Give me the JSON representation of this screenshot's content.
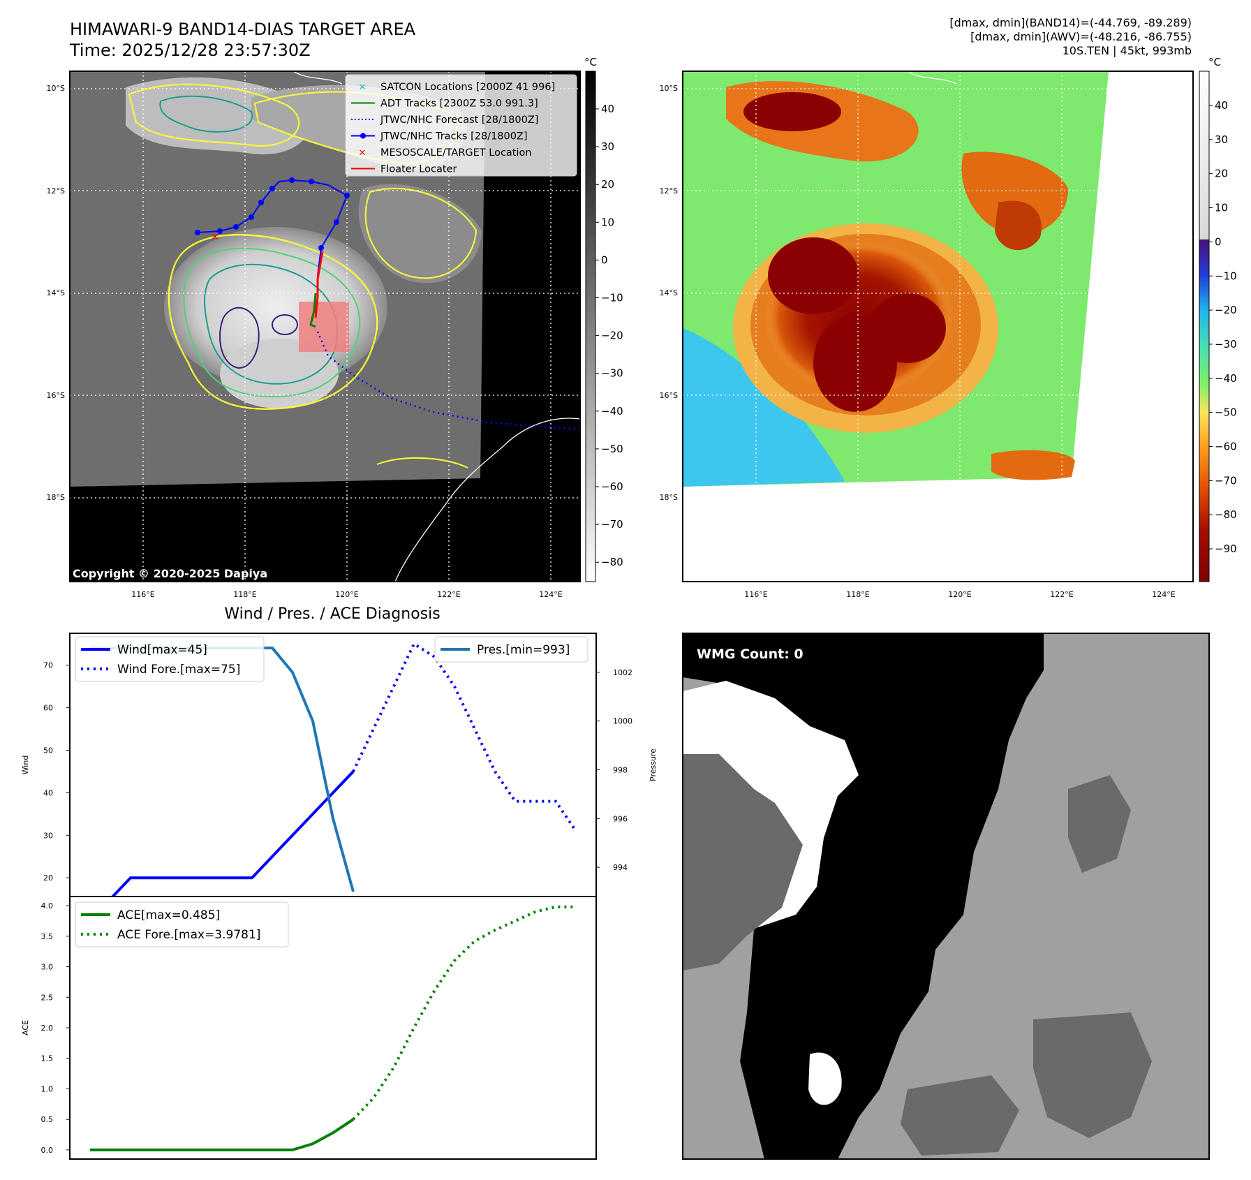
{
  "header": {
    "title_line1": "HIMAWARI-9 BAND14-DIAS TARGET AREA",
    "title_line2": "Time: 2025/12/28 23:57:30Z",
    "right_line1": "[dmax, dmin](BAND14)=(-44.769, -89.289)",
    "right_line2": "[dmax, dmin](AWV)=(-48.216, -86.755)",
    "right_line3": "10S.TEN | 45kt, 993mb"
  },
  "map": {
    "lat_labels": [
      "10°S",
      "12°S",
      "14°S",
      "16°S",
      "18°S"
    ],
    "lon_labels": [
      "116°E",
      "118°E",
      "120°E",
      "122°E",
      "124°E"
    ],
    "copyright": "Copyright © 2020-2025 Dapiya",
    "legend": [
      {
        "label": "SATCON Locations [2000Z 41 996]",
        "color": "#17becf",
        "marker": "x"
      },
      {
        "label": "ADT Tracks [2300Z 53.0 991.3]",
        "color": "#008000",
        "marker": "line"
      },
      {
        "label": "JTWC/NHC Forecast [28/1800Z]",
        "color": "#0000ff",
        "marker": "dotted"
      },
      {
        "label": "JTWC/NHC Tracks [28/1800Z]",
        "color": "#0000ff",
        "marker": "line-dot"
      },
      {
        "label": "MESOSCALE/TARGET Location",
        "color": "#ff0000",
        "marker": "x"
      },
      {
        "label": "Floater Locater",
        "color": "#ff0000",
        "marker": "line"
      }
    ],
    "cbar1": {
      "unit": "°C",
      "ticks": [
        "40",
        "30",
        "20",
        "10",
        "0",
        "−10",
        "−20",
        "−30",
        "−40",
        "−50",
        "−60",
        "−70",
        "−80"
      ]
    },
    "cbar2": {
      "unit": "°C",
      "ticks": [
        "40",
        "30",
        "20",
        "10",
        "0",
        "−10",
        "−20",
        "−30",
        "−40",
        "−50",
        "−60",
        "−70",
        "−80",
        "−90"
      ]
    }
  },
  "wmg": {
    "label": "WMG Count: 0"
  },
  "chart_data": [
    {
      "type": "line",
      "title": "Wind / Pres. / ACE Diagnosis",
      "ylabel": "Wind",
      "y2label": "Pressure",
      "ylim": [
        15.6,
        77.5
      ],
      "y2lim": [
        992.8,
        1003.6
      ],
      "yticks": [
        20,
        30,
        40,
        50,
        60,
        70
      ],
      "y2ticks": [
        994,
        996,
        998,
        1000,
        1002
      ],
      "x": [
        0,
        1,
        2,
        3,
        4,
        5,
        6,
        7,
        8,
        9,
        10,
        11,
        12,
        13,
        14,
        15,
        16,
        17,
        18,
        19,
        20,
        21,
        22,
        23,
        24
      ],
      "series": [
        {
          "name": "Wind[max=45]",
          "axis": "left",
          "style": "solid",
          "color": "#0000ff",
          "x": [
            0,
            1,
            2,
            3,
            4,
            5,
            6,
            7,
            8,
            9,
            10,
            11,
            12,
            13
          ],
          "values": [
            15,
            15,
            20,
            20,
            20,
            20,
            20,
            20,
            20,
            25,
            30,
            35,
            40,
            45
          ]
        },
        {
          "name": "Wind Fore.[max=75]",
          "axis": "left",
          "style": "dotted",
          "color": "#0000ff",
          "x": [
            13,
            14,
            15,
            16,
            17,
            18,
            19,
            20,
            21,
            22,
            23,
            24
          ],
          "values": [
            45,
            55,
            65,
            75,
            72,
            65,
            55,
            45,
            38,
            38,
            38,
            31
          ]
        },
        {
          "name": "Pres.[min=993]",
          "axis": "right",
          "style": "solid",
          "color": "#1f77b4",
          "x": [
            0,
            1,
            2,
            3,
            4,
            5,
            6,
            7,
            8,
            9,
            10,
            11,
            12,
            13
          ],
          "values": [
            1003,
            1003,
            1003,
            1003,
            1003,
            1003,
            1003,
            1003,
            1003,
            1003,
            1002,
            1000,
            996,
            993
          ]
        }
      ]
    },
    {
      "type": "line",
      "ylabel": "ACE",
      "ylim": [
        -0.15,
        4.15
      ],
      "yticks": [
        0.0,
        0.5,
        1.0,
        1.5,
        2.0,
        2.5,
        3.0,
        3.5,
        4.0
      ],
      "ytick_labels": [
        "0.0",
        "0.5",
        "1.0",
        "1.5",
        "2.0",
        "2.5",
        "3.0",
        "3.5",
        "4.0"
      ],
      "series": [
        {
          "name": "ACE[max=0.485]",
          "style": "solid",
          "color": "#008000",
          "x": [
            0,
            1,
            2,
            3,
            4,
            5,
            6,
            7,
            8,
            9,
            10,
            11,
            12,
            13
          ],
          "values": [
            0,
            0,
            0,
            0,
            0,
            0,
            0,
            0,
            0,
            0,
            0,
            0.1,
            0.28,
            0.5
          ]
        },
        {
          "name": "ACE Fore.[max=3.9781]",
          "style": "dotted",
          "color": "#008000",
          "x": [
            13,
            14,
            15,
            16,
            17,
            18,
            19,
            20,
            21,
            22,
            23,
            24
          ],
          "values": [
            0.5,
            0.85,
            1.35,
            2.0,
            2.6,
            3.1,
            3.42,
            3.6,
            3.75,
            3.9,
            3.98,
            3.98
          ]
        }
      ]
    }
  ]
}
